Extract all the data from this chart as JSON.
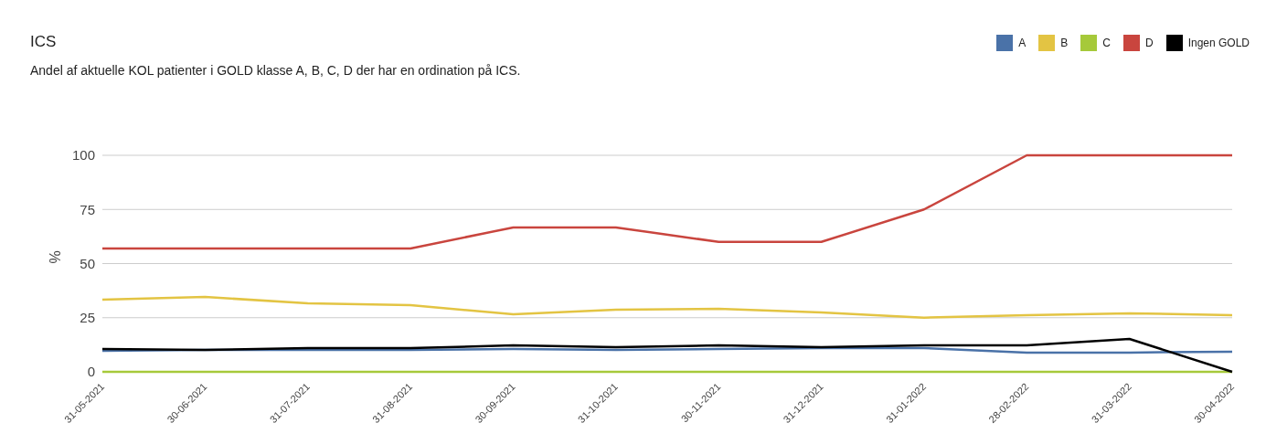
{
  "chart_data": {
    "type": "line",
    "title": "ICS",
    "subtitle": "Andel af aktuelle KOL patienter i GOLD klasse A, B, C, D der har en ordination på ICS.",
    "ylabel": "%",
    "categories": [
      "31-05-2021",
      "30-06-2021",
      "31-07-2021",
      "31-08-2021",
      "30-09-2021",
      "31-10-2021",
      "30-11-2021",
      "31-12-2021",
      "31-01-2022",
      "28-02-2022",
      "31-03-2022",
      "30-04-2022"
    ],
    "series": [
      {
        "name": "A",
        "color": "#4a72a8",
        "values": [
          9.7,
          10.1,
          10.1,
          10.1,
          10.5,
          10.1,
          10.5,
          11,
          11,
          8.9,
          8.9,
          9.3
        ]
      },
      {
        "name": "B",
        "color": "#e3c443",
        "values": [
          33.3,
          34.6,
          31.6,
          30.8,
          26.6,
          28.7,
          29.1,
          27.4,
          25,
          26.2,
          27,
          26.2
        ]
      },
      {
        "name": "C",
        "color": "#a6c93a",
        "values": [
          0,
          0,
          0,
          0,
          0,
          0,
          0,
          0,
          0,
          0,
          0,
          0
        ]
      },
      {
        "name": "D",
        "color": "#c9453e",
        "values": [
          57,
          57,
          57,
          57,
          66.7,
          66.7,
          60,
          60,
          75,
          100,
          100,
          100
        ]
      },
      {
        "name": "Ingen GOLD",
        "color": "#000000",
        "values": [
          10.5,
          10.1,
          11,
          11,
          12.2,
          11.4,
          12.2,
          11.4,
          12.2,
          12.2,
          15.2,
          0
        ]
      }
    ],
    "ylim": [
      0,
      100
    ],
    "yticks": [
      0,
      25,
      50,
      75,
      100
    ],
    "grid": "y",
    "legend": "top right",
    "marker": "none",
    "line_style": "solid"
  }
}
